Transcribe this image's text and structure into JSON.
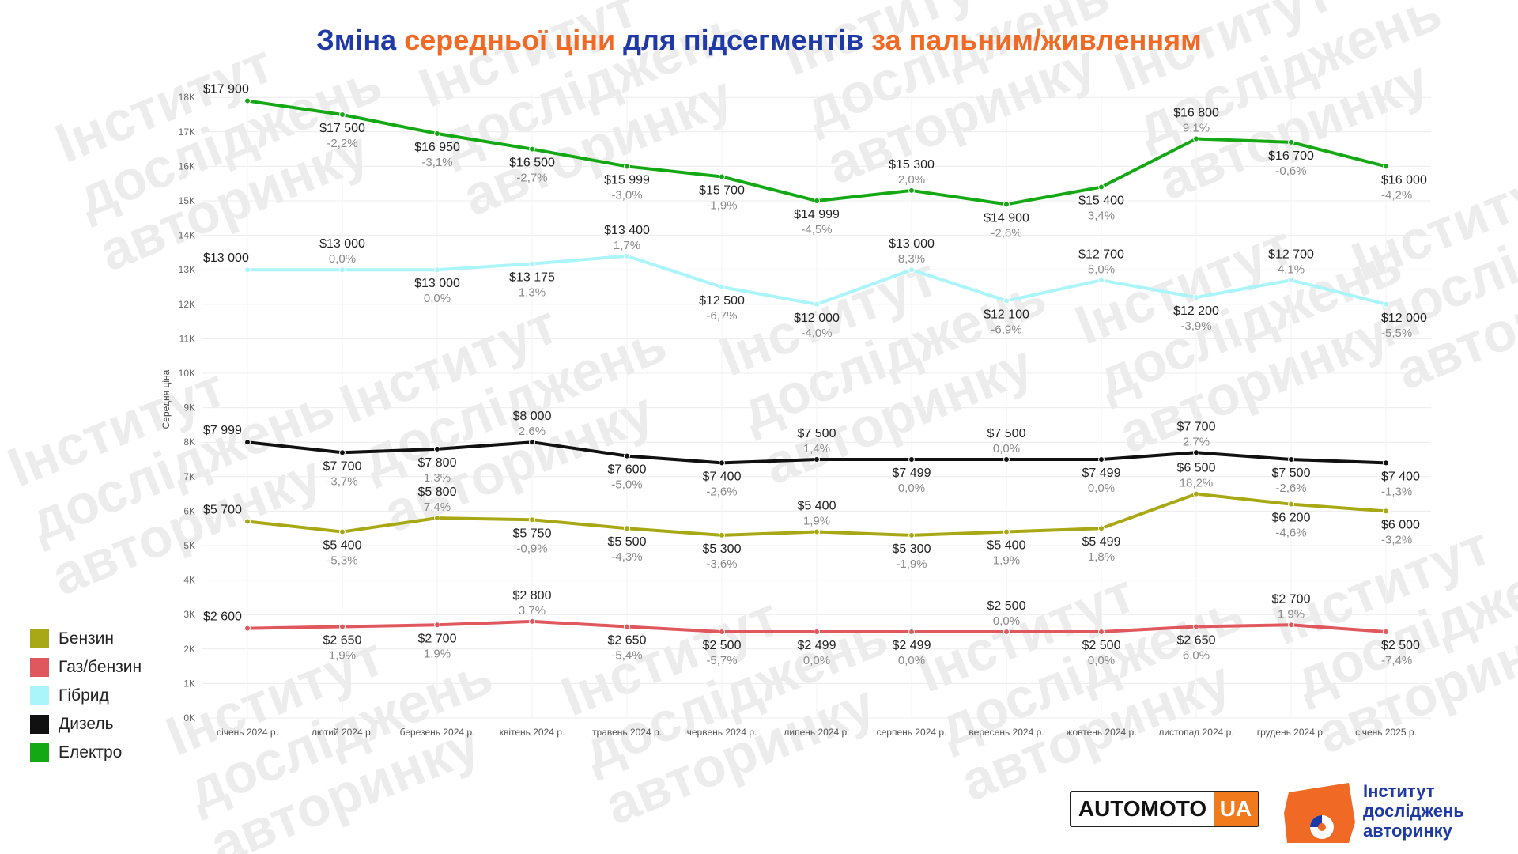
{
  "title": {
    "parts": [
      {
        "text": "Зміна ",
        "color": "blue"
      },
      {
        "text": "середньої ціни ",
        "color": "orange"
      },
      {
        "text": "для підсегментів ",
        "color": "blue"
      },
      {
        "text": "за пальним/живленням",
        "color": "orange"
      }
    ]
  },
  "colors": {
    "title_blue": "#1f3aa6",
    "title_orange": "#f06a26"
  },
  "watermark_text": [
    "Інститут",
    "досліджень",
    "авторинку"
  ],
  "chart_data": {
    "type": "line",
    "ylabel": "Середня ціна",
    "ylim": [
      0,
      18000
    ],
    "yticks": [
      {
        "value": 0,
        "label": "0K"
      },
      {
        "value": 1000,
        "label": "1K"
      },
      {
        "value": 2000,
        "label": "2K"
      },
      {
        "value": 3000,
        "label": "3K"
      },
      {
        "value": 4000,
        "label": "4K"
      },
      {
        "value": 5000,
        "label": "5K"
      },
      {
        "value": 6000,
        "label": "6K"
      },
      {
        "value": 7000,
        "label": "7K"
      },
      {
        "value": 8000,
        "label": "8K"
      },
      {
        "value": 9000,
        "label": "9K"
      },
      {
        "value": 10000,
        "label": "10K"
      },
      {
        "value": 11000,
        "label": "11K"
      },
      {
        "value": 12000,
        "label": "12K"
      },
      {
        "value": 13000,
        "label": "13K"
      },
      {
        "value": 14000,
        "label": "14K"
      },
      {
        "value": 15000,
        "label": "15K"
      },
      {
        "value": 16000,
        "label": "16K"
      },
      {
        "value": 17000,
        "label": "17K"
      },
      {
        "value": 18000,
        "label": "18K"
      }
    ],
    "grid": true,
    "legend_position": "bottom-left",
    "categories": [
      "січень 2024 р.",
      "лютий 2024 р.",
      "березень 2024 р.",
      "квітень 2024 р.",
      "травень 2024 р.",
      "червень 2024 р.",
      "липень 2024 р.",
      "серпень 2024 р.",
      "вересень 2024 р.",
      "жовтень 2024 р.",
      "листопад 2024 р.",
      "грудень 2024 р.",
      "січень 2025 р."
    ],
    "series": [
      {
        "name": "Бензин",
        "color": "#a8a814",
        "values": [
          5700,
          5400,
          5800,
          5750,
          5500,
          5300,
          5400,
          5300,
          5400,
          5499,
          6500,
          6200,
          6000
        ],
        "value_labels": [
          "$5 700",
          "$5 400",
          "$5 800",
          "$5 750",
          "$5 500",
          "$5 300",
          "$5 400",
          "$5 300",
          "$5 400",
          "$5 499",
          "$6 500",
          "$6 200",
          "$6 000"
        ],
        "change_labels": [
          "",
          "-5,3%",
          "7,4%",
          "-0,9%",
          "-4,3%",
          "-3,6%",
          "1,9%",
          "-1,9%",
          "1,9%",
          "1,8%",
          "18,2%",
          "-4,6%",
          "-3,2%"
        ]
      },
      {
        "name": "Газ/бензин",
        "color": "#e0585e",
        "values": [
          2600,
          2650,
          2700,
          2800,
          2650,
          2500,
          2499,
          2499,
          2500,
          2500,
          2650,
          2700,
          2500
        ],
        "value_labels": [
          "$2 600",
          "$2 650",
          "$2 700",
          "$2 800",
          "$2 650",
          "$2 500",
          "$2 499",
          "$2 499",
          "$2 500",
          "$2 500",
          "$2 650",
          "$2 700",
          "$2 500"
        ],
        "change_labels": [
          "",
          "1,9%",
          "1,9%",
          "3,7%",
          "-5,4%",
          "-5,7%",
          "0,0%",
          "0,0%",
          "0,0%",
          "0,0%",
          "6,0%",
          "1,9%",
          "-7,4%"
        ]
      },
      {
        "name": "Гібрид",
        "color": "#aaf5fa",
        "values": [
          13000,
          13000,
          13000,
          13175,
          13400,
          12500,
          12000,
          13000,
          12100,
          12700,
          12200,
          12700,
          12000
        ],
        "value_labels": [
          "$13 000",
          "$13 000",
          "$13 000",
          "$13 175",
          "$13 400",
          "$12 500",
          "$12 000",
          "$13 000",
          "$12 100",
          "$12 700",
          "$12 200",
          "$12 700",
          "$12 000"
        ],
        "change_labels": [
          "",
          "0,0%",
          "0,0%",
          "1,3%",
          "1,7%",
          "-6,7%",
          "-4,0%",
          "8,3%",
          "-6,9%",
          "5,0%",
          "-3,9%",
          "4,1%",
          "-5,5%"
        ]
      },
      {
        "name": "Дизель",
        "color": "#111111",
        "values": [
          7999,
          7700,
          7800,
          8000,
          7600,
          7400,
          7500,
          7499,
          7500,
          7499,
          7700,
          7500,
          7400
        ],
        "value_labels": [
          "$7 999",
          "$7 700",
          "$7 800",
          "$8 000",
          "$7 600",
          "$7 400",
          "$7 500",
          "$7 499",
          "$7 500",
          "$7 499",
          "$7 700",
          "$7 500",
          "$7 400"
        ],
        "change_labels": [
          "",
          "-3,7%",
          "1,3%",
          "2,6%",
          "-5,0%",
          "-2,6%",
          "1,4%",
          "0,0%",
          "0,0%",
          "0,0%",
          "2,7%",
          "-2,6%",
          "-1,3%"
        ]
      },
      {
        "name": "Електро",
        "color": "#14a814",
        "values": [
          17900,
          17500,
          16950,
          16500,
          15999,
          15700,
          14999,
          15300,
          14900,
          15400,
          16800,
          16700,
          16000
        ],
        "value_labels": [
          "$17 900",
          "$17 500",
          "$16 950",
          "$16 500",
          "$15 999",
          "$15 700",
          "$14 999",
          "$15 300",
          "$14 900",
          "$15 400",
          "$16 800",
          "$16 700",
          "$16 000"
        ],
        "change_labels": [
          "",
          "-2,2%",
          "-3,1%",
          "-2,7%",
          "-3,0%",
          "-1,9%",
          "-4,5%",
          "2,0%",
          "-2,6%",
          "3,4%",
          "9,1%",
          "-0,6%",
          "-4,2%"
        ]
      }
    ]
  },
  "logos": {
    "automoto_main": "AUTOMOTO",
    "automoto_ua": "UA",
    "institute_lines": [
      "Інститут",
      "досліджень",
      "авторинку"
    ]
  }
}
